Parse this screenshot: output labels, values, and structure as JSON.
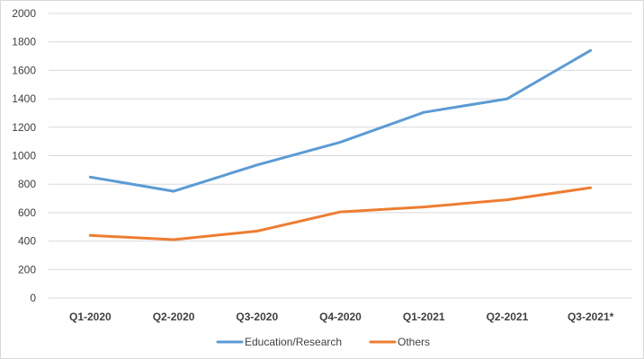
{
  "chart_data": {
    "type": "line",
    "categories": [
      "Q1-2020",
      "Q2-2020",
      "Q3-2020",
      "Q4-2020",
      "Q1-2021",
      "Q2-2021",
      "Q3-2021*"
    ],
    "series": [
      {
        "name": "Education/Research",
        "color": "#5b9bd5",
        "values": [
          850,
          750,
          935,
          1095,
          1305,
          1400,
          1740
        ]
      },
      {
        "name": "Others",
        "color": "#ed7d31",
        "values": [
          440,
          410,
          470,
          605,
          640,
          690,
          775
        ]
      }
    ],
    "y_ticks": [
      "0",
      "200",
      "400",
      "600",
      "800",
      "1000",
      "1200",
      "1400",
      "1600",
      "1800",
      "2000"
    ],
    "ylim": [
      0,
      2000
    ],
    "grid": true,
    "legend_position": "bottom"
  }
}
